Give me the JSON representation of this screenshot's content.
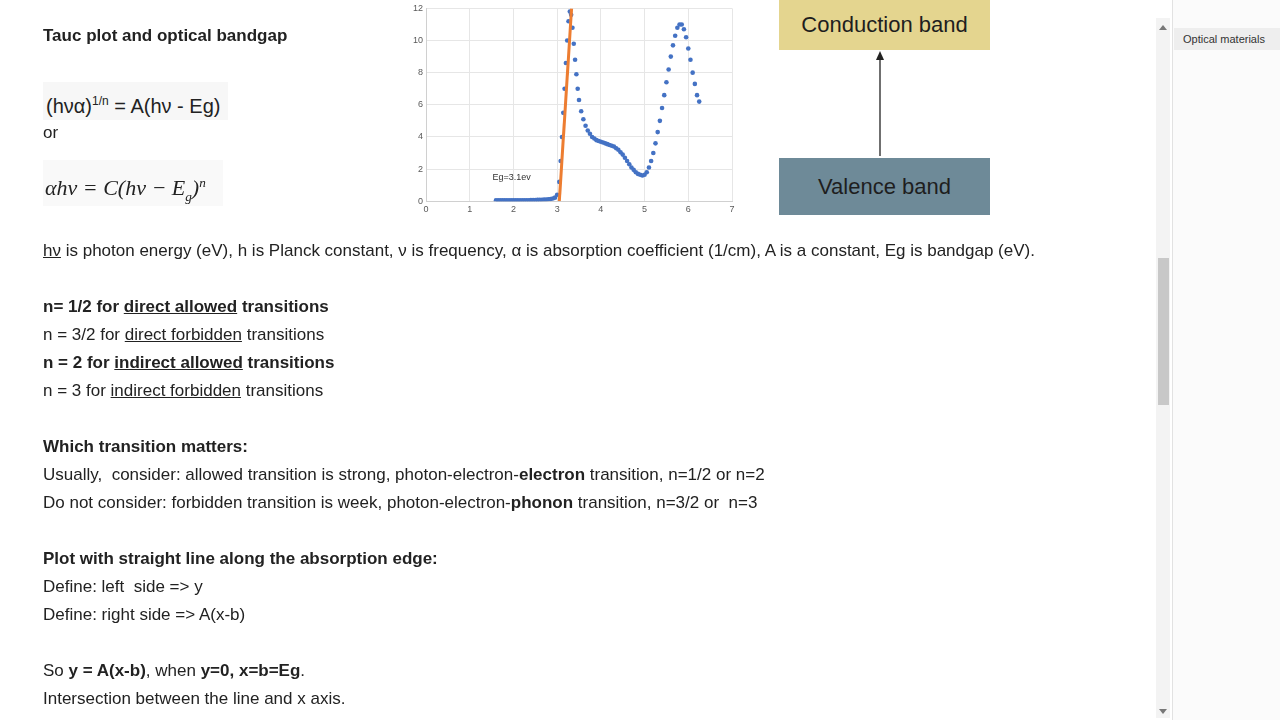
{
  "document": {
    "title": "Tauc plot and optical bandgap",
    "formula_1": [
      {
        "text": "(hνα)"
      },
      {
        "text": "1/n",
        "sup": true
      },
      {
        "text": " = A(hν - Eg)"
      }
    ],
    "connector": "or",
    "formula_2": [
      {
        "text": "αhν = C(hν − E",
        "italic": true
      },
      {
        "text": "g",
        "sub": true,
        "italic": true
      },
      {
        "text": ")",
        "italic": true
      },
      {
        "text": "n",
        "sup": true,
        "italic": true
      }
    ],
    "sections": [
      [
        [
          {
            "text": "hν",
            "underline": true
          },
          {
            "text": " is photon energy (eV), h is Planck constant, ν is frequency, α is absorption coefficient (1/cm), A is a constant, Eg is bandgap (eV)."
          }
        ]
      ],
      [
        [
          {
            "text": "n= 1/2 for ",
            "bold": true
          },
          {
            "text": "direct allowed",
            "bold": true,
            "underline": true
          },
          {
            "text": " transitions",
            "bold": true
          }
        ],
        [
          {
            "text": "n = 3/2 for "
          },
          {
            "text": "direct forbidden",
            "underline": true
          },
          {
            "text": " transitions"
          }
        ],
        [
          {
            "text": "n = 2 for ",
            "bold": true
          },
          {
            "text": "indirect allowed",
            "bold": true,
            "underline": true
          },
          {
            "text": " transitions",
            "bold": true
          }
        ],
        [
          {
            "text": "n = 3 for "
          },
          {
            "text": "indirect forbidden",
            "underline": true
          },
          {
            "text": " transitions"
          }
        ]
      ],
      [
        [
          {
            "text": "Which transition matters:",
            "bold": true
          }
        ],
        [
          {
            "text": "Usually,  consider: allowed transition is strong, photon-electron-"
          },
          {
            "text": "electron",
            "bold": true
          },
          {
            "text": " transition, n=1/2 or n=2"
          }
        ],
        [
          {
            "text": "Do not consider: forbidden transition is week, photon-electron-"
          },
          {
            "text": "phonon",
            "bold": true
          },
          {
            "text": " transition, n=3/2 or  n=3"
          }
        ]
      ],
      [
        [
          {
            "text": "Plot with straight line along the absorption edge:",
            "bold": true
          }
        ],
        [
          {
            "text": "Define: left  side => y"
          }
        ],
        [
          {
            "text": "Define: right side => A(x-b)"
          }
        ]
      ],
      [
        [
          {
            "text": "So "
          },
          {
            "text": "y = A(x-b)",
            "bold": true
          },
          {
            "text": ", when "
          },
          {
            "text": "y=0, x=b=Eg",
            "bold": true
          },
          {
            "text": "."
          }
        ],
        [
          {
            "text": "Intersection between the line and x axis."
          }
        ]
      ]
    ]
  },
  "diagram": {
    "upper": "Conduction band",
    "lower": "Valence band"
  },
  "sidebar": {
    "title": "Optical materials"
  },
  "chart_data": {
    "type": "scatter",
    "annotations": [
      "Eg=3.1ev"
    ],
    "xlim": [
      0,
      7
    ],
    "xticks": [
      0,
      1,
      2,
      3,
      4,
      5,
      6,
      7
    ],
    "ylim": [
      0,
      12
    ],
    "yticks": [
      0,
      2,
      4,
      6,
      8,
      10,
      12
    ],
    "grid": true,
    "series": [
      {
        "color": "#4472c4",
        "marker": "circle",
        "x": [
          1.6,
          1.65,
          1.7,
          1.75,
          1.8,
          1.85,
          1.9,
          1.95,
          2.0,
          2.05,
          2.1,
          2.15,
          2.2,
          2.25,
          2.3,
          2.35,
          2.4,
          2.45,
          2.5,
          2.55,
          2.6,
          2.65,
          2.7,
          2.75,
          2.8,
          2.85,
          2.9,
          2.95,
          3.0,
          3.05,
          3.08,
          3.11,
          3.14,
          3.17,
          3.2,
          3.23,
          3.26,
          3.29,
          3.32,
          3.35,
          3.38,
          3.41,
          3.44,
          3.47,
          3.5,
          3.55,
          3.6,
          3.65,
          3.7,
          3.75,
          3.8,
          3.85,
          3.9,
          3.95,
          4.0,
          4.05,
          4.1,
          4.15,
          4.2,
          4.25,
          4.3,
          4.35,
          4.4,
          4.45,
          4.5,
          4.55,
          4.6,
          4.65,
          4.7,
          4.75,
          4.8,
          4.85,
          4.9,
          4.95,
          5.0,
          5.05,
          5.1,
          5.15,
          5.2,
          5.25,
          5.3,
          5.35,
          5.4,
          5.45,
          5.5,
          5.55,
          5.6,
          5.65,
          5.7,
          5.75,
          5.8,
          5.85,
          5.9,
          5.95,
          6.0,
          6.05,
          6.1,
          6.15,
          6.2,
          6.25
        ],
        "values": [
          0.05,
          0.05,
          0.05,
          0.05,
          0.05,
          0.05,
          0.05,
          0.05,
          0.05,
          0.05,
          0.05,
          0.06,
          0.06,
          0.06,
          0.06,
          0.06,
          0.07,
          0.07,
          0.07,
          0.08,
          0.08,
          0.09,
          0.1,
          0.1,
          0.12,
          0.14,
          0.17,
          0.22,
          0.4,
          1.2,
          2.5,
          4.0,
          5.5,
          7.0,
          8.6,
          10.0,
          11.2,
          11.8,
          11.6,
          10.8,
          9.8,
          8.8,
          7.9,
          7.0,
          6.3,
          5.6,
          5.1,
          4.7,
          4.4,
          4.2,
          4.0,
          3.9,
          3.8,
          3.75,
          3.7,
          3.65,
          3.6,
          3.55,
          3.5,
          3.45,
          3.4,
          3.3,
          3.2,
          3.05,
          2.9,
          2.7,
          2.5,
          2.3,
          2.1,
          1.95,
          1.8,
          1.7,
          1.65,
          1.6,
          1.65,
          1.8,
          2.1,
          2.5,
          3.0,
          3.6,
          4.3,
          5.0,
          5.8,
          6.6,
          7.4,
          8.2,
          9.0,
          9.7,
          10.3,
          10.8,
          11.0,
          11.0,
          10.7,
          10.2,
          9.5,
          8.8,
          8.0,
          7.3,
          6.6,
          6.2
        ]
      },
      {
        "type": "line",
        "color": "#ed7d31",
        "line_style": "solid",
        "x": [
          3.05,
          3.33
        ],
        "values": [
          0,
          12
        ]
      }
    ]
  }
}
